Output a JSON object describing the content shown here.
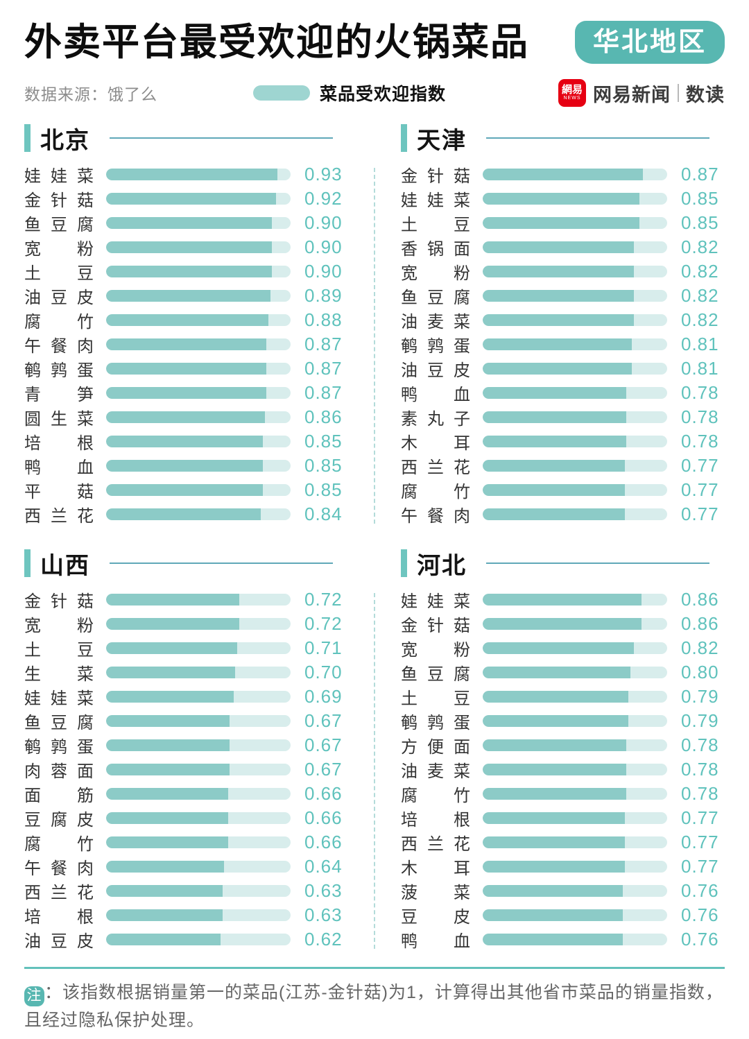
{
  "header": {
    "title": "外卖平台最受欢迎的火锅菜品",
    "region_badge": "华北地区",
    "source": "数据来源：饿了么",
    "legend_label": "菜品受欢迎指数",
    "brand": {
      "icon_cn": "網易",
      "icon_en": "NEWS",
      "name": "网易新闻",
      "sub": "数读"
    }
  },
  "chart_data": [
    {
      "type": "bar",
      "title": "北京",
      "categories": [
        "娃娃菜",
        "金针菇",
        "鱼豆腐",
        "宽粉",
        "土豆",
        "油豆皮",
        "腐竹",
        "午餐肉",
        "鹌鹑蛋",
        "青笋",
        "圆生菜",
        "培根",
        "鸭血",
        "平菇",
        "西兰花"
      ],
      "values": [
        0.93,
        0.92,
        0.9,
        0.9,
        0.9,
        0.89,
        0.88,
        0.87,
        0.87,
        0.87,
        0.86,
        0.85,
        0.85,
        0.85,
        0.84
      ],
      "xlabel": "",
      "ylabel": "",
      "xlim": [
        0,
        1
      ],
      "grid": false,
      "legend_position": "top-center"
    },
    {
      "type": "bar",
      "title": "天津",
      "categories": [
        "金针菇",
        "娃娃菜",
        "土豆",
        "香锅面",
        "宽粉",
        "鱼豆腐",
        "油麦菜",
        "鹌鹑蛋",
        "油豆皮",
        "鸭血",
        "素丸子",
        "木耳",
        "西兰花",
        "腐竹",
        "午餐肉"
      ],
      "values": [
        0.87,
        0.85,
        0.85,
        0.82,
        0.82,
        0.82,
        0.82,
        0.81,
        0.81,
        0.78,
        0.78,
        0.78,
        0.77,
        0.77,
        0.77
      ],
      "xlabel": "",
      "ylabel": "",
      "xlim": [
        0,
        1
      ],
      "grid": false,
      "legend_position": "top-center"
    },
    {
      "type": "bar",
      "title": "山西",
      "categories": [
        "金针菇",
        "宽粉",
        "土豆",
        "生菜",
        "娃娃菜",
        "鱼豆腐",
        "鹌鹑蛋",
        "肉蓉面",
        "面筋",
        "豆腐皮",
        "腐竹",
        "午餐肉",
        "西兰花",
        "培根",
        "油豆皮"
      ],
      "values": [
        0.72,
        0.72,
        0.71,
        0.7,
        0.69,
        0.67,
        0.67,
        0.67,
        0.66,
        0.66,
        0.66,
        0.64,
        0.63,
        0.63,
        0.62
      ],
      "xlabel": "",
      "ylabel": "",
      "xlim": [
        0,
        1
      ],
      "grid": false,
      "legend_position": "top-center"
    },
    {
      "type": "bar",
      "title": "河北",
      "categories": [
        "娃娃菜",
        "金针菇",
        "宽粉",
        "鱼豆腐",
        "土豆",
        "鹌鹑蛋",
        "方便面",
        "油麦菜",
        "腐竹",
        "培根",
        "西兰花",
        "木耳",
        "菠菜",
        "豆皮",
        "鸭血"
      ],
      "values": [
        0.86,
        0.86,
        0.82,
        0.8,
        0.79,
        0.79,
        0.78,
        0.78,
        0.78,
        0.77,
        0.77,
        0.77,
        0.76,
        0.76,
        0.76
      ],
      "xlabel": "",
      "ylabel": "",
      "xlim": [
        0,
        1
      ],
      "grid": false,
      "legend_position": "top-center"
    }
  ],
  "footer": {
    "note_badge": "注",
    "note_text": "：该指数根据销量第一的菜品(江苏-金针菇)为1，计算得出其他省市菜品的销量指数，且经过隐私保护处理。"
  },
  "colors": {
    "bar_fill": "#8ccbc7",
    "bar_track": "#d8edec",
    "value_text": "#5fc2bc",
    "badge_teal": "#58b7b1",
    "section_marker": "#6ec5bf",
    "section_line": "#5fa8b8",
    "footer_line": "#63c1bb",
    "brand_red": "#e60012"
  }
}
